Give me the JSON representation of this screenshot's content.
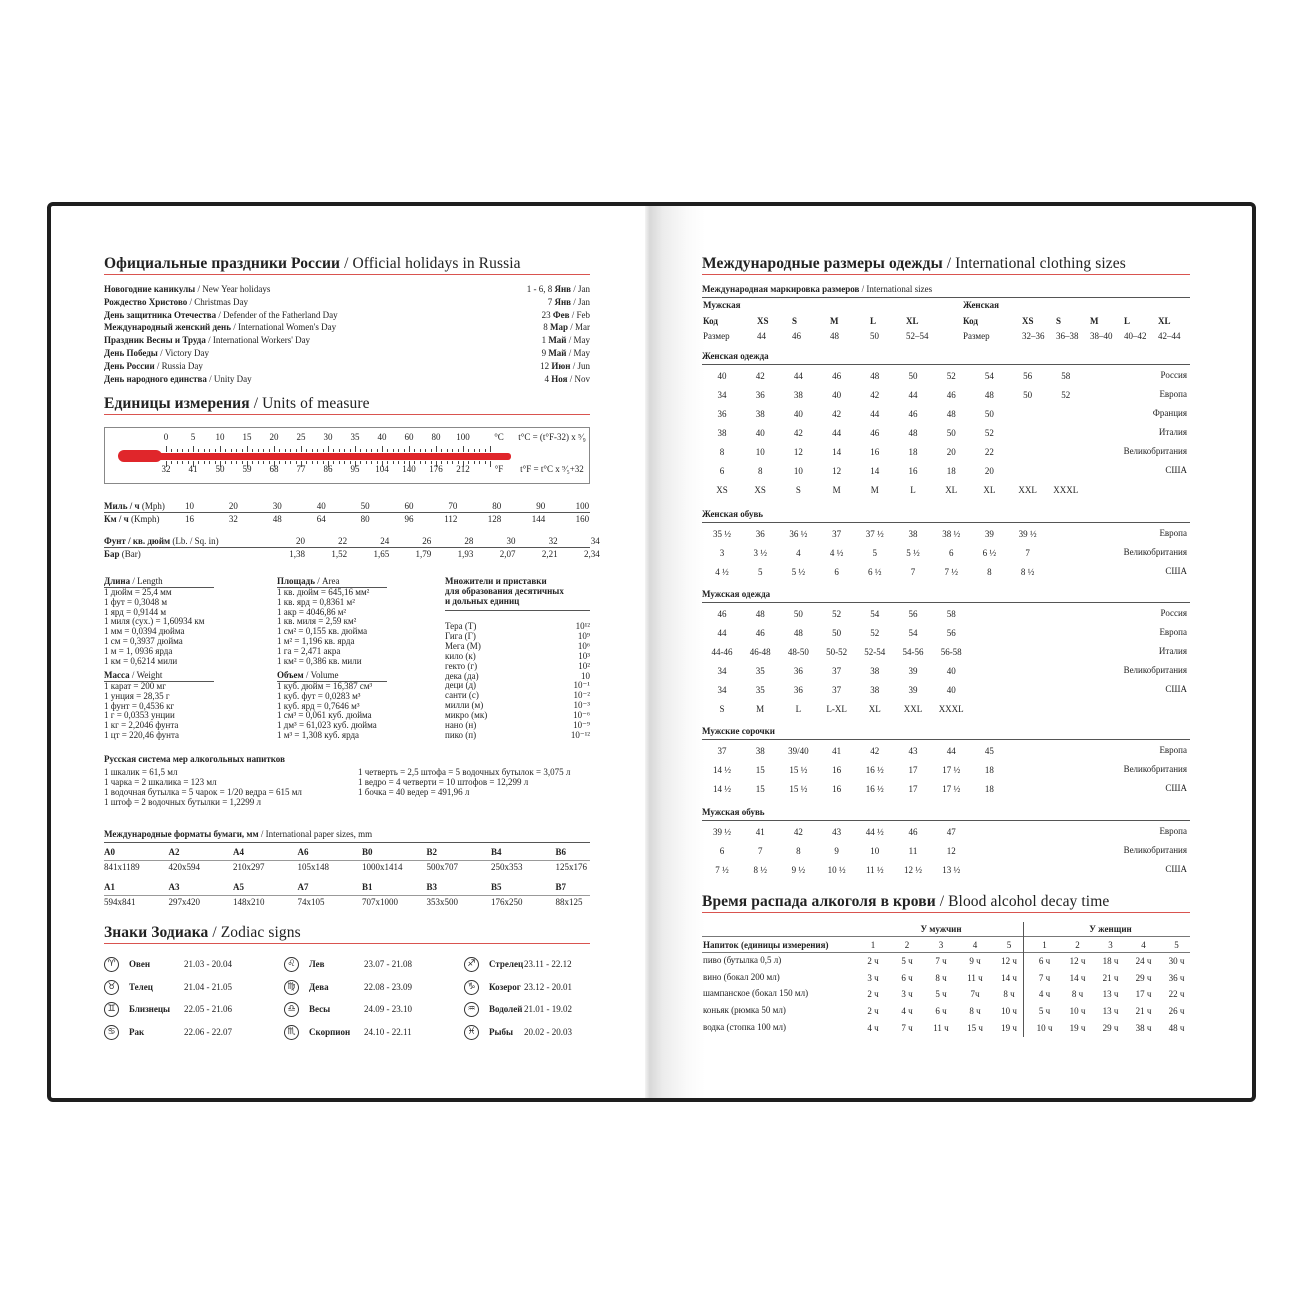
{
  "holidays": {
    "title_ru": "Официальные праздники России",
    "title_en": "/ Official holidays in Russia",
    "items": [
      {
        "ru": "Новогодние каникулы",
        "en": "/ New Year holidays",
        "day": "1 - 6, 8",
        "month_ru": "Янв",
        "month_en": "/ Jan"
      },
      {
        "ru": "Рождество Христово",
        "en": "/ Christmas Day",
        "day": "7",
        "month_ru": "Янв",
        "month_en": "/ Jan"
      },
      {
        "ru": "День защитника Отечества",
        "en": "/ Defender of the Fatherland Day",
        "day": "23",
        "month_ru": "Фев",
        "month_en": "/ Feb"
      },
      {
        "ru": "Международный женский день",
        "en": "/ International Women's Day",
        "day": "8",
        "month_ru": "Мар",
        "month_en": "/ Mar"
      },
      {
        "ru": "Праздник Весны и Труда",
        "en": "/ International Workers' Day",
        "day": "1",
        "month_ru": "Май",
        "month_en": "/ May"
      },
      {
        "ru": "День Победы",
        "en": "/ Victory Day",
        "day": "9",
        "month_ru": "Май",
        "month_en": "/ May"
      },
      {
        "ru": "День России",
        "en": "/ Russia Day",
        "day": "12",
        "month_ru": "Июн",
        "month_en": "/ Jun"
      },
      {
        "ru": "День народного единства",
        "en": "/ Unity Day",
        "day": "4",
        "month_ru": "Ноя",
        "month_en": "/ Nov"
      }
    ]
  },
  "units": {
    "title_ru": "Единицы измерения",
    "title_en": "/ Units of measure",
    "thermometer": {
      "celsius": [
        "0",
        "5",
        "10",
        "15",
        "20",
        "25",
        "30",
        "35",
        "40",
        "60",
        "80",
        "100"
      ],
      "fahrenheit": [
        "32",
        "41",
        "50",
        "59",
        "68",
        "77",
        "86",
        "95",
        "104",
        "140",
        "176",
        "212"
      ],
      "c_unit": "°C",
      "f_unit": "°F",
      "c_formula": "t°C = (t°F-32) x ⁵⁄₉",
      "f_formula": "t°F = t°C x ⁹⁄₅+32",
      "fill_color": "#e0262b"
    },
    "speed": {
      "mph_ru": "Миль / ч",
      "mph_en": "(Mph)",
      "mph": [
        "10",
        "20",
        "30",
        "40",
        "50",
        "60",
        "70",
        "80",
        "90",
        "100"
      ],
      "kmph_ru": "Км / ч",
      "kmph_en": "(Kmph)",
      "kmph": [
        "16",
        "32",
        "48",
        "64",
        "80",
        "96",
        "112",
        "128",
        "144",
        "160"
      ]
    },
    "pressure": {
      "psi_ru": "Фунт / кв. дюйм",
      "psi_en": "(Lb. / Sq. in)",
      "psi": [
        "20",
        "22",
        "24",
        "26",
        "28",
        "30",
        "32",
        "34"
      ],
      "bar_ru": "Бар",
      "bar_en": "(Bar)",
      "bar": [
        "1,38",
        "1,52",
        "1,65",
        "1,79",
        "1,93",
        "2,07",
        "2,21",
        "2,34"
      ]
    },
    "length": {
      "title_ru": "Длина",
      "title_en": "/ Length",
      "items": [
        "1 дюйм = 25,4 мм",
        "1 фут = 0,3048 м",
        "1 ярд = 0,9144 м",
        "1 миля (сух.) = 1,60934 км",
        "1 мм = 0,0394 дюйма",
        "1 см = 0,3937 дюйма",
        "1 м = 1, 0936 ярда",
        "1 км = 0,6214 мили"
      ]
    },
    "mass": {
      "title_ru": "Масса",
      "title_en": "/ Weight",
      "items": [
        "1 карат = 200 мг",
        "1 унция = 28,35 г",
        "1 фунт = 0,4536 кг",
        "1 г = 0,0353 унции",
        "1 кг = 2,2046 фунта",
        "1 цт = 220,46 фунта"
      ]
    },
    "area": {
      "title_ru": "Площадь",
      "title_en": "/ Area",
      "items": [
        "1 кв. дюйм = 645,16 мм²",
        "1 кв. ярд = 0,8361 м²",
        "1 акр = 4046,86 м²",
        "1 кв. миля = 2,59 км²",
        "1 см² = 0,155 кв. дюйма",
        "1 м² = 1,196 кв. ярда",
        "1 га = 2,471 акра",
        "1 км² = 0,386 кв. мили"
      ]
    },
    "volume": {
      "title_ru": "Объем",
      "title_en": "/ Volume",
      "items": [
        "1 куб. дюйм = 16,387 см³",
        "1 куб. фут = 0,0283 м³",
        "1 куб. ярд = 0,7646 м³",
        "1 см³ = 0,061 куб. дюйма",
        "1 дм³ = 61,023 куб. дюйма",
        "1 м³ = 1,308 куб. ярда"
      ]
    },
    "multipliers": {
      "title": [
        "Множители и приставки",
        "для образования десятичных",
        "и дольных единиц"
      ],
      "items": [
        {
          "name": "Тера (Т)",
          "value": "10¹²"
        },
        {
          "name": "Гига (Г)",
          "value": "10⁹"
        },
        {
          "name": "Мега (М)",
          "value": "10⁶"
        },
        {
          "name": "кило (к)",
          "value": "10³"
        },
        {
          "name": "гекто (г)",
          "value": "10²"
        },
        {
          "name": "дека (да)",
          "value": "10"
        },
        {
          "name": "деци (д)",
          "value": "10⁻¹"
        },
        {
          "name": "санти (с)",
          "value": "10⁻²"
        },
        {
          "name": "милли (м)",
          "value": "10⁻³"
        },
        {
          "name": "микро (мк)",
          "value": "10⁻⁶"
        },
        {
          "name": "нано (н)",
          "value": "10⁻⁹"
        },
        {
          "name": "пико (п)",
          "value": "10⁻¹²"
        }
      ]
    }
  },
  "alcohol_measures": {
    "title": "Русская система мер алкогольных напитков",
    "left": [
      "1 шкалик = 61,5 мл",
      "1 чарка = 2 шкалика = 123 мл",
      "1 водочная бутылка = 5 чарок = 1/20 ведра = 615 мл",
      "1 штоф = 2 водочных бутылки = 1,2299 л"
    ],
    "right": [
      "1 четверть = 2,5 штофа = 5 водочных бутылок = 3,075 л",
      "1 ведро = 4 четверти = 10 штофов = 12,299 л",
      "1 бочка = 40 ведер = 491,96 л"
    ]
  },
  "paper": {
    "title_ru": "Международные форматы бумаги, мм",
    "title_en": "/ International paper sizes, mm",
    "rows": [
      [
        {
          "name": "A0",
          "size": "841x1189"
        },
        {
          "name": "A2",
          "size": "420x594"
        },
        {
          "name": "A4",
          "size": "210x297"
        },
        {
          "name": "A6",
          "size": "105x148"
        },
        {
          "name": "B0",
          "size": "1000x1414"
        },
        {
          "name": "B2",
          "size": "500x707"
        },
        {
          "name": "B4",
          "size": "250x353"
        },
        {
          "name": "B6",
          "size": "125x176"
        }
      ],
      [
        {
          "name": "A1",
          "size": "594x841"
        },
        {
          "name": "A3",
          "size": "297x420"
        },
        {
          "name": "A5",
          "size": "148x210"
        },
        {
          "name": "A7",
          "size": "74x105"
        },
        {
          "name": "B1",
          "size": "707x1000"
        },
        {
          "name": "B3",
          "size": "353x500"
        },
        {
          "name": "B5",
          "size": "176x250"
        },
        {
          "name": "B7",
          "size": "88x125"
        }
      ]
    ]
  },
  "zodiac": {
    "title_ru": "Знаки Зодиака",
    "title_en": "/ Zodiac signs",
    "columns": [
      [
        {
          "icon": "aries-icon",
          "glyph": "♈",
          "name": "Овен",
          "dates": "21.03 - 20.04"
        },
        {
          "icon": "taurus-icon",
          "glyph": "♉",
          "name": "Телец",
          "dates": "21.04 - 21.05"
        },
        {
          "icon": "gemini-icon",
          "glyph": "♊",
          "name": "Близнецы",
          "dates": "22.05 - 21.06"
        },
        {
          "icon": "cancer-icon",
          "glyph": "♋",
          "name": "Рак",
          "dates": "22.06 - 22.07"
        }
      ],
      [
        {
          "icon": "leo-icon",
          "glyph": "♌",
          "name": "Лев",
          "dates": "23.07 - 21.08"
        },
        {
          "icon": "virgo-icon",
          "glyph": "♍",
          "name": "Дева",
          "dates": "22.08 - 23.09"
        },
        {
          "icon": "libra-icon",
          "glyph": "♎",
          "name": "Весы",
          "dates": "24.09 - 23.10"
        },
        {
          "icon": "scorpio-icon",
          "glyph": "♏",
          "name": "Скорпион",
          "dates": "24.10 - 22.11"
        }
      ],
      [
        {
          "icon": "sagittarius-icon",
          "glyph": "♐",
          "name": "Стрелец",
          "dates": "23.11 - 22.12"
        },
        {
          "icon": "capricorn-icon",
          "glyph": "♑",
          "name": "Козерог",
          "dates": "23.12 - 20.01"
        },
        {
          "icon": "aquarius-icon",
          "glyph": "♒",
          "name": "Водолей",
          "dates": "21.01 - 19.02"
        },
        {
          "icon": "pisces-icon",
          "glyph": "♓",
          "name": "Рыбы",
          "dates": "20.02 - 20.03"
        }
      ]
    ]
  },
  "clothing": {
    "title_ru": "Международные размеры одежды",
    "title_en": "/ International clothing sizes",
    "intl": {
      "title_ru": "Международная маркировка размеров",
      "title_en": "/ International sizes",
      "men": {
        "title": "Мужская",
        "header": [
          "Код",
          "XS",
          "S",
          "M",
          "L",
          "XL"
        ],
        "sizes": [
          "Размер",
          "44",
          "46",
          "48",
          "50",
          "52–54"
        ]
      },
      "women": {
        "title": "Женская",
        "header": [
          "Код",
          "XS",
          "S",
          "M",
          "L",
          "XL"
        ],
        "sizes": [
          "Размер",
          "32–36",
          "36–38",
          "38–40",
          "40–42",
          "42–44"
        ]
      }
    },
    "tables": [
      {
        "title": "Женская одежда",
        "rows": [
          {
            "values": [
              "40",
              "42",
              "44",
              "46",
              "48",
              "50",
              "52",
              "54",
              "56",
              "58"
            ],
            "label": "Россия"
          },
          {
            "values": [
              "34",
              "36",
              "38",
              "40",
              "42",
              "44",
              "46",
              "48",
              "50",
              "52"
            ],
            "label": "Европа"
          },
          {
            "values": [
              "36",
              "38",
              "40",
              "42",
              "44",
              "46",
              "48",
              "50"
            ],
            "label": "Франция"
          },
          {
            "values": [
              "38",
              "40",
              "42",
              "44",
              "46",
              "48",
              "50",
              "52"
            ],
            "label": "Италия"
          },
          {
            "values": [
              "8",
              "10",
              "12",
              "14",
              "16",
              "18",
              "20",
              "22"
            ],
            "label": "Великобритания"
          },
          {
            "values": [
              "6",
              "8",
              "10",
              "12",
              "14",
              "16",
              "18",
              "20"
            ],
            "label": "США"
          },
          {
            "values": [
              "XS",
              "XS",
              "S",
              "M",
              "M",
              "L",
              "XL",
              "XL",
              "XXL",
              "XXXL"
            ],
            "label": ""
          }
        ]
      },
      {
        "title": "Женская обувь",
        "rows": [
          {
            "values": [
              "35 ½",
              "36",
              "36 ½",
              "37",
              "37 ½",
              "38",
              "38 ½",
              "39",
              "39 ½"
            ],
            "label": "Европа"
          },
          {
            "values": [
              "3",
              "3 ½",
              "4",
              "4 ½",
              "5",
              "5 ½",
              "6",
              "6 ½",
              "7"
            ],
            "label": "Великобритания"
          },
          {
            "values": [
              "4 ½",
              "5",
              "5 ½",
              "6",
              "6 ½",
              "7",
              "7 ½",
              "8",
              "8 ½"
            ],
            "label": "США"
          }
        ]
      },
      {
        "title": "Мужская одежда",
        "rows": [
          {
            "values": [
              "46",
              "48",
              "50",
              "52",
              "54",
              "56",
              "58"
            ],
            "label": "Россия"
          },
          {
            "values": [
              "44",
              "46",
              "48",
              "50",
              "52",
              "54",
              "56"
            ],
            "label": "Европа"
          },
          {
            "values": [
              "44-46",
              "46-48",
              "48-50",
              "50-52",
              "52-54",
              "54-56",
              "56-58"
            ],
            "label": "Италия"
          },
          {
            "values": [
              "34",
              "35",
              "36",
              "37",
              "38",
              "39",
              "40"
            ],
            "label": "Великобритания"
          },
          {
            "values": [
              "34",
              "35",
              "36",
              "37",
              "38",
              "39",
              "40"
            ],
            "label": "США"
          },
          {
            "values": [
              "S",
              "M",
              "L",
              "L-XL",
              "XL",
              "XXL",
              "XXXL"
            ],
            "label": ""
          }
        ]
      },
      {
        "title": "Мужские сорочки",
        "rows": [
          {
            "values": [
              "37",
              "38",
              "39/40",
              "41",
              "42",
              "43",
              "44",
              "45"
            ],
            "label": "Европа"
          },
          {
            "values": [
              "14 ½",
              "15",
              "15 ½",
              "16",
              "16 ½",
              "17",
              "17 ½",
              "18"
            ],
            "label": "Великобритания"
          },
          {
            "values": [
              "14 ½",
              "15",
              "15 ½",
              "16",
              "16 ½",
              "17",
              "17 ½",
              "18"
            ],
            "label": "США"
          }
        ]
      },
      {
        "title": "Мужская обувь",
        "rows": [
          {
            "values": [
              "39 ½",
              "41",
              "42",
              "43",
              "44 ½",
              "46",
              "47"
            ],
            "label": "Европа"
          },
          {
            "values": [
              "6",
              "7",
              "8",
              "9",
              "10",
              "11",
              "12"
            ],
            "label": "Великобритания"
          },
          {
            "values": [
              "7 ½",
              "8 ½",
              "9 ½",
              "10 ½",
              "11 ½",
              "12 ½",
              "13 ½"
            ],
            "label": "США"
          }
        ]
      }
    ]
  },
  "blood_alcohol": {
    "title_ru": "Время распада алкоголя в крови",
    "title_en": "/ Blood alcohol decay time",
    "men_label": "У мужчин",
    "women_label": "У женщин",
    "drink_header": "Напиток (единицы измерения)",
    "columns": [
      "1",
      "2",
      "3",
      "4",
      "5"
    ],
    "rows": [
      {
        "drink": "пиво (бутылка 0,5 л)",
        "men": [
          "2 ч",
          "5 ч",
          "7 ч",
          "9 ч",
          "12 ч"
        ],
        "women": [
          "6 ч",
          "12 ч",
          "18 ч",
          "24 ч",
          "30 ч"
        ]
      },
      {
        "drink": "вино (бокал 200 мл)",
        "men": [
          "3 ч",
          "6 ч",
          "8 ч",
          "11 ч",
          "14 ч"
        ],
        "women": [
          "7 ч",
          "14 ч",
          "21 ч",
          "29 ч",
          "36 ч"
        ]
      },
      {
        "drink": "шампанское (бокал 150 мл)",
        "men": [
          "2 ч",
          "3 ч",
          "5 ч",
          "7ч",
          "8 ч"
        ],
        "women": [
          "4 ч",
          "8 ч",
          "13 ч",
          "17 ч",
          "22 ч"
        ]
      },
      {
        "drink": "коньяк (рюмка 50 мл)",
        "men": [
          "2 ч",
          "4 ч",
          "6 ч",
          "8 ч",
          "10 ч"
        ],
        "women": [
          "5 ч",
          "10 ч",
          "13 ч",
          "21 ч",
          "26 ч"
        ]
      },
      {
        "drink": "водка (стопка 100 мл)",
        "men": [
          "4 ч",
          "7 ч",
          "11 ч",
          "15 ч",
          "19 ч"
        ],
        "women": [
          "10 ч",
          "19 ч",
          "29 ч",
          "38 ч",
          "48 ч"
        ]
      }
    ]
  },
  "colors": {
    "accent_red": "#d9534f",
    "book_border": "#1e1e1e"
  }
}
